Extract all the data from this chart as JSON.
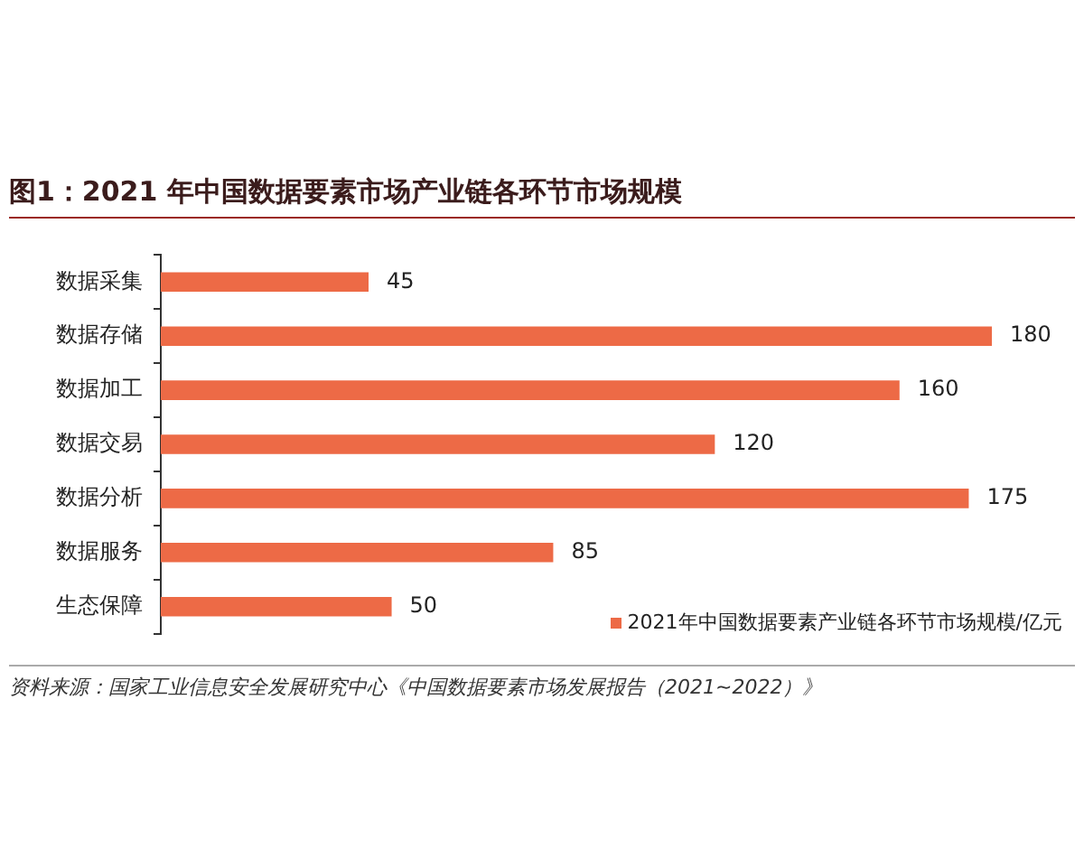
{
  "chart_data": {
    "type": "bar",
    "orientation": "horizontal",
    "title": "图1：2021 年中国数据要素市场产业链各环节市场规模",
    "categories": [
      "数据采集",
      "数据存储",
      "数据加工",
      "数据交易",
      "数据分析",
      "数据服务",
      "生态保障"
    ],
    "series": [
      {
        "name": "2021年中国数据要素产业链各环节市场规模/亿元",
        "color": "#ed6a46",
        "values": [
          45,
          180,
          160,
          120,
          175,
          85,
          50
        ]
      }
    ],
    "xlim": [
      0,
      180
    ],
    "data_labels": true,
    "tick_labels": "y",
    "legend": "bottom right",
    "annotations": [
      "资料来源：国家工业信息安全发展研究中心《中国数据要素市场发展报告（2021~2022）》"
    ]
  }
}
